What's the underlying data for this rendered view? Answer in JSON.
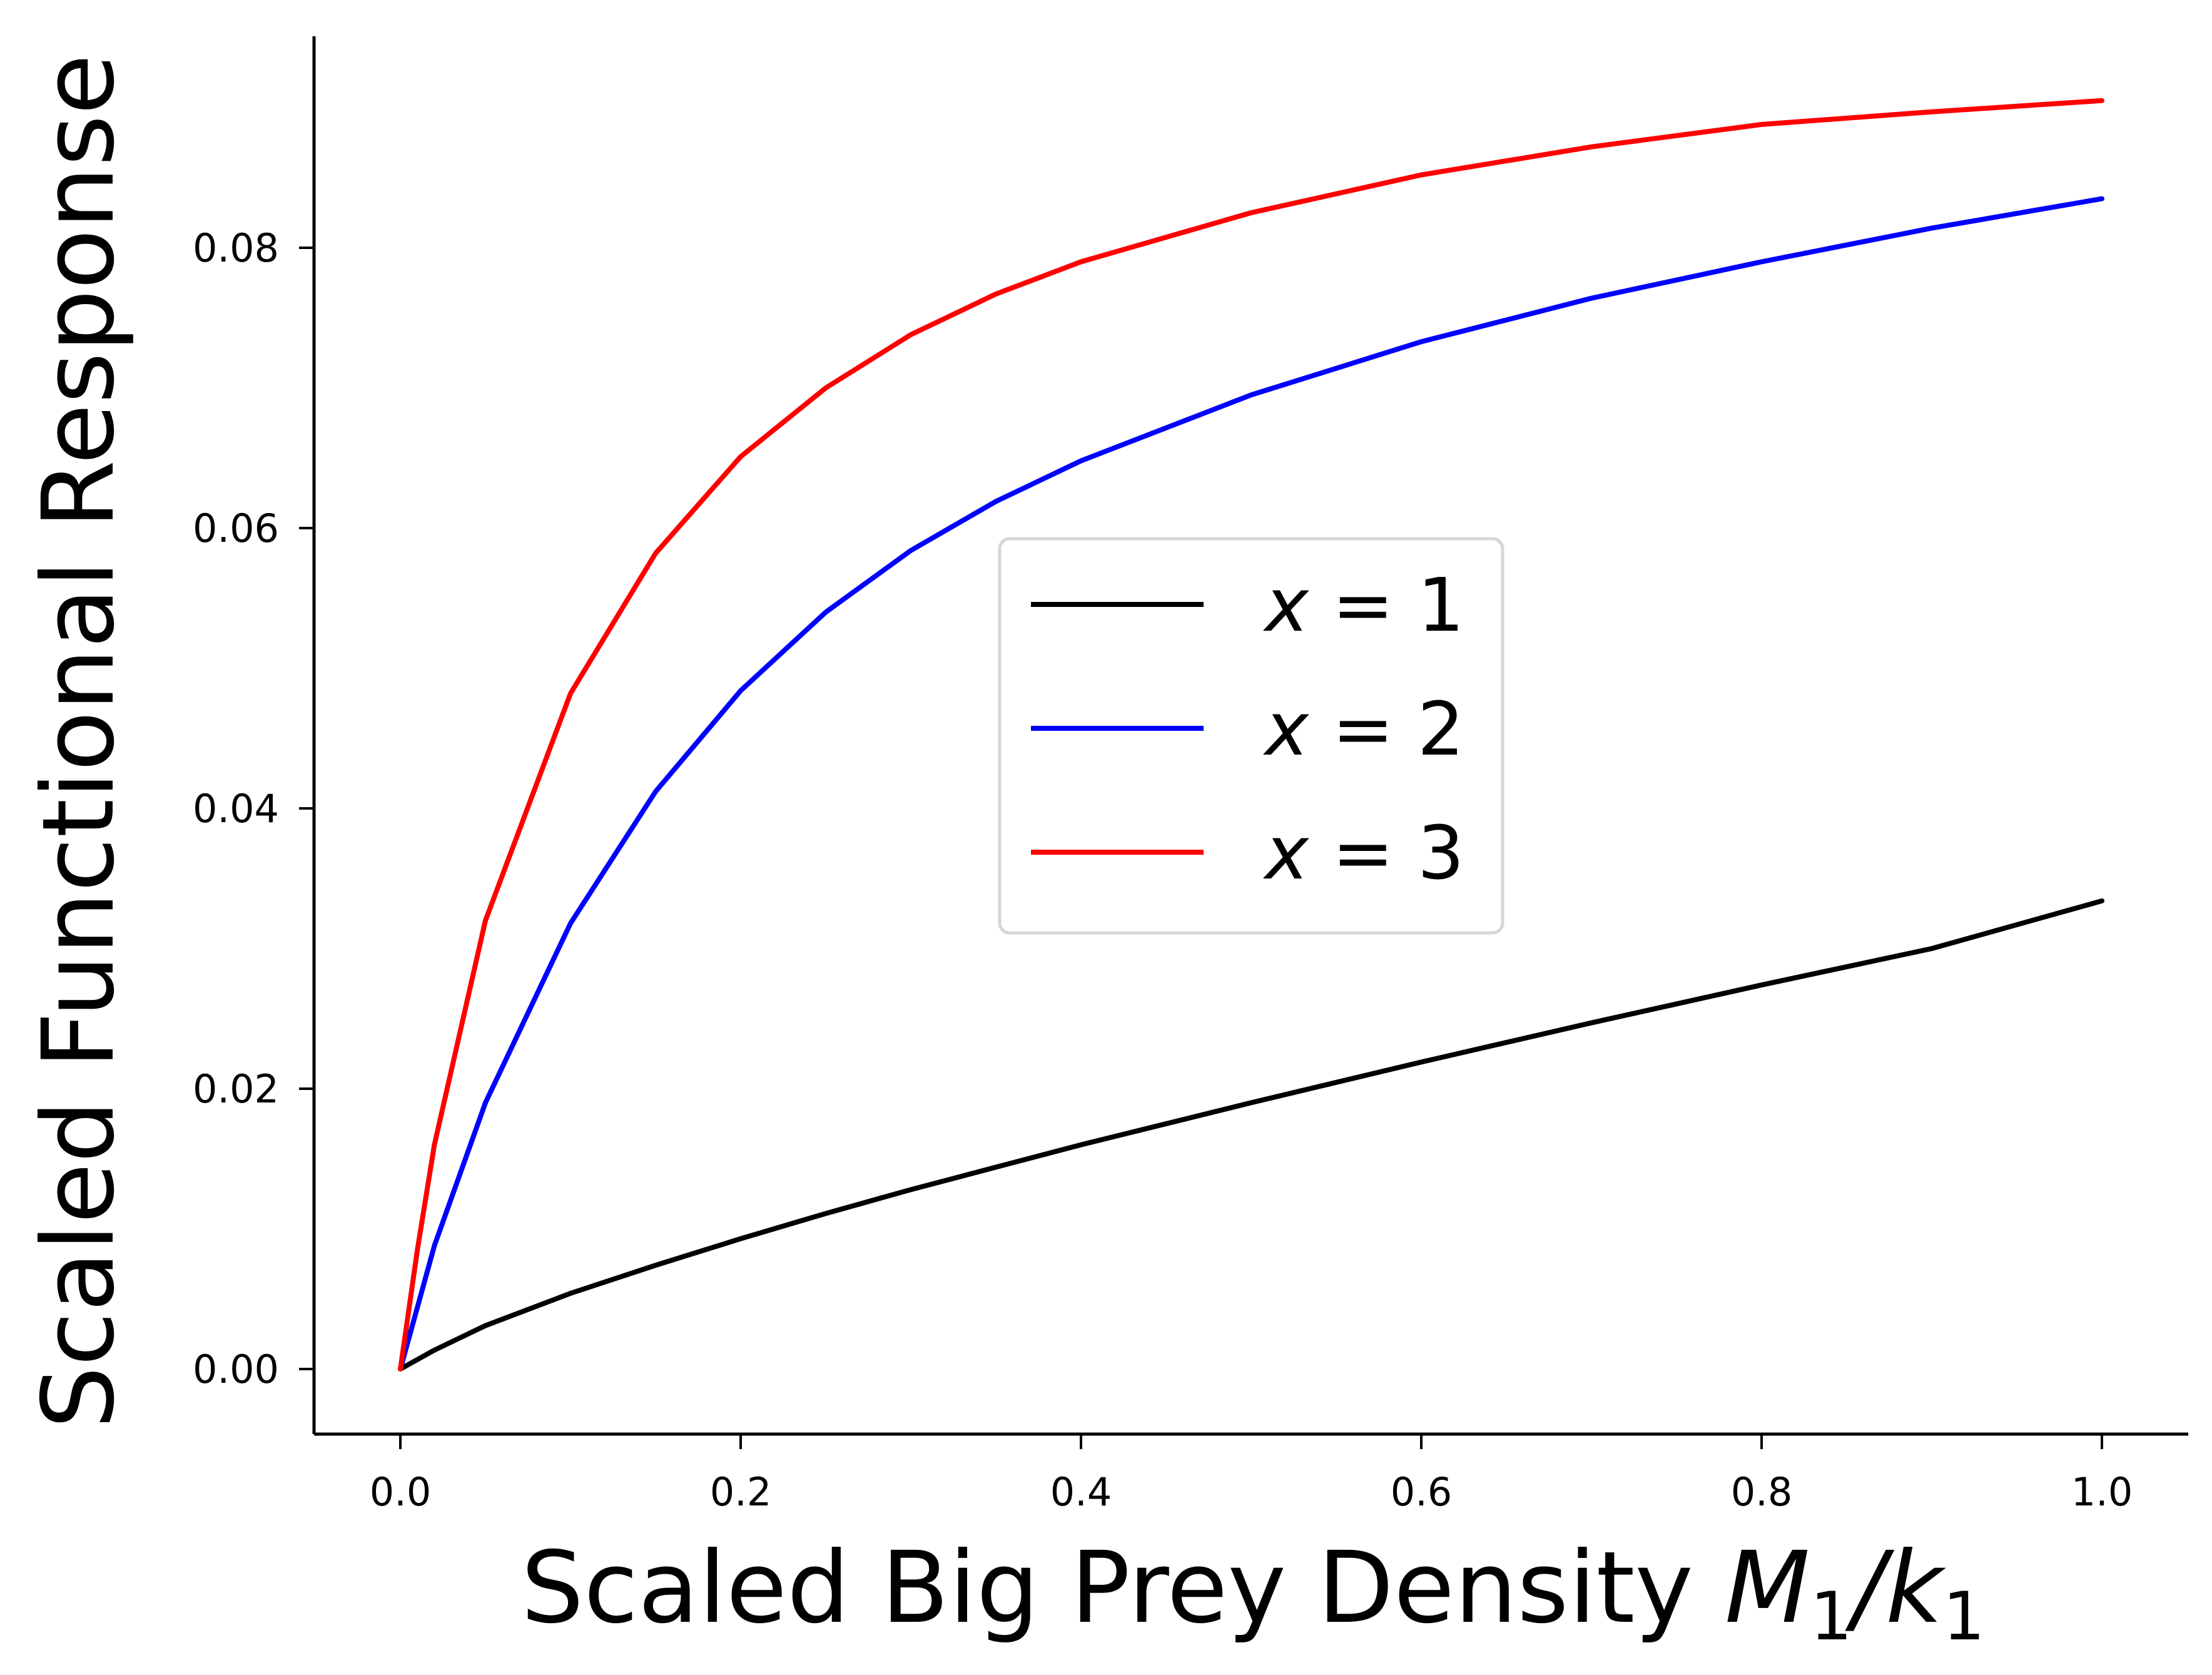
{
  "chart_data": {
    "type": "line",
    "xlabel": "Scaled Big Prey Density M1/k1",
    "xlabel_parts": {
      "prefix": "Scaled Big Prey Density ",
      "var1": "M",
      "sub1": "1",
      "slash": "/",
      "var2": "k",
      "sub2": "1"
    },
    "ylabel": "Scaled Functional Response",
    "xlim": [
      -0.05,
      1.05
    ],
    "ylim": [
      -0.0045,
      0.095
    ],
    "xticks": [
      "0.0",
      "0.2",
      "0.4",
      "0.6",
      "0.8",
      "1.0"
    ],
    "yticks": [
      "0.00",
      "0.02",
      "0.04",
      "0.06",
      "0.08"
    ],
    "grid": false,
    "legend_position": "center",
    "legend_var": "x",
    "legend_eq": "=",
    "series": [
      {
        "name": "x = 1",
        "label_value": "1",
        "color": "#000000",
        "x": [
          0.0,
          0.02,
          0.05,
          0.1,
          0.15,
          0.2,
          0.25,
          0.3,
          0.35,
          0.4,
          0.5,
          0.6,
          0.7,
          0.8,
          0.9,
          1.0
        ],
        "y": [
          0.0,
          0.00135,
          0.0031,
          0.0054,
          0.0074,
          0.0093,
          0.0111,
          0.0128,
          0.0144,
          0.016,
          0.019,
          0.0219,
          0.0247,
          0.0274,
          0.03,
          0.0334
        ]
      },
      {
        "name": "x = 2",
        "label_value": "2",
        "color": "#0000ff",
        "x": [
          0.0,
          0.02,
          0.05,
          0.1,
          0.15,
          0.2,
          0.25,
          0.3,
          0.35,
          0.4,
          0.5,
          0.6,
          0.7,
          0.8,
          0.9,
          1.0
        ],
        "y": [
          0.0,
          0.0088,
          0.019,
          0.0318,
          0.0412,
          0.0484,
          0.054,
          0.0584,
          0.0619,
          0.0648,
          0.0695,
          0.0733,
          0.0764,
          0.079,
          0.0814,
          0.0835
        ]
      },
      {
        "name": "x = 3",
        "label_value": "3",
        "color": "#ff0000",
        "x": [
          0.0,
          0.01,
          0.02,
          0.05,
          0.1,
          0.15,
          0.2,
          0.25,
          0.3,
          0.35,
          0.4,
          0.5,
          0.6,
          0.7,
          0.8,
          0.9,
          1.0
        ],
        "y": [
          0.0,
          0.0085,
          0.016,
          0.032,
          0.0482,
          0.0582,
          0.0651,
          0.07,
          0.0738,
          0.0767,
          0.079,
          0.0825,
          0.0852,
          0.0872,
          0.0888,
          0.0897,
          0.0905
        ]
      }
    ]
  }
}
